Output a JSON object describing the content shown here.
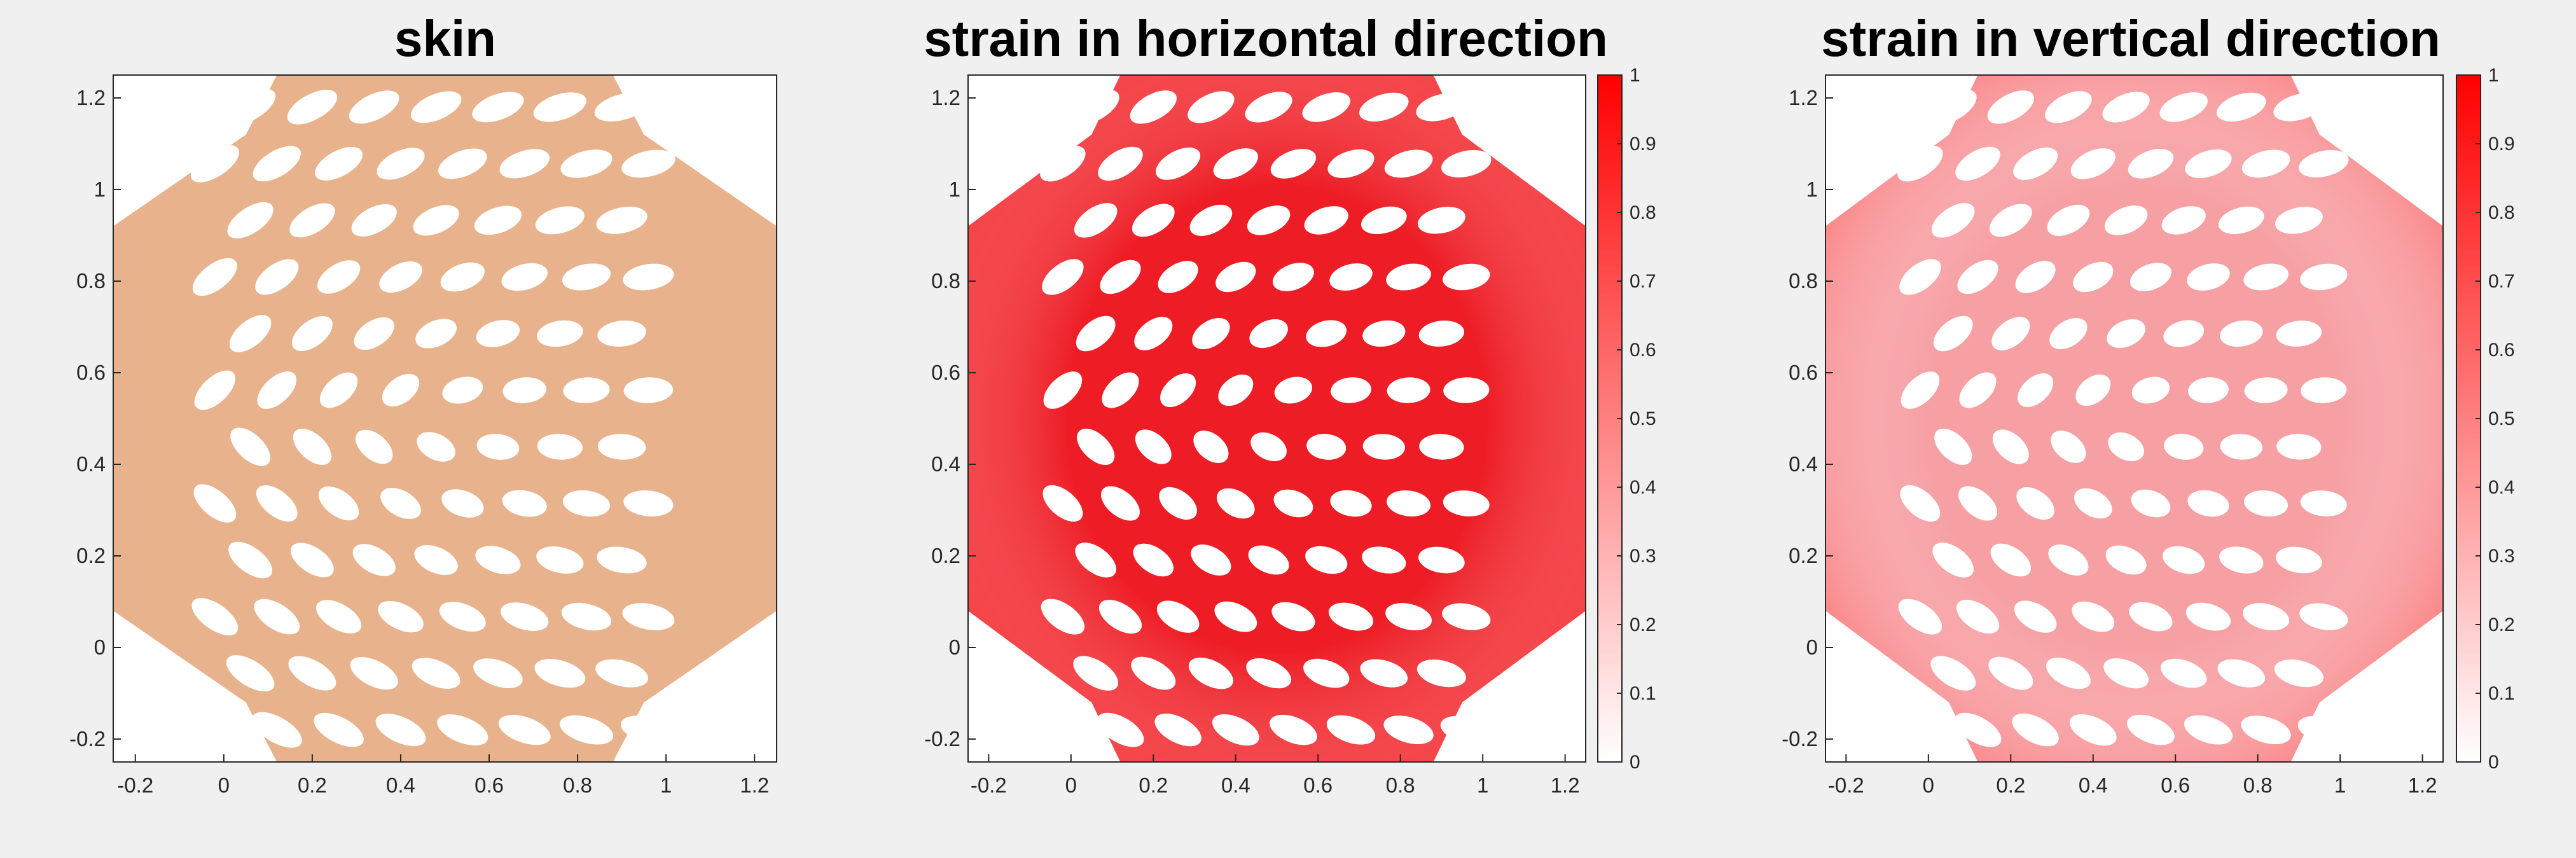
{
  "figure": {
    "background": "#f0f0f0"
  },
  "chart_data": [
    {
      "type": "heatmap",
      "title": "skin",
      "xlim": [
        -0.25,
        1.25
      ],
      "ylim": [
        -0.25,
        1.25
      ],
      "xticks": [
        -0.2,
        0,
        0.2,
        0.4,
        0.6,
        0.8,
        1,
        1.2
      ],
      "yticks": [
        -0.2,
        0,
        0.2,
        0.4,
        0.6,
        0.8,
        1,
        1.2
      ],
      "xtick_labels": [
        "-0.2",
        "0",
        "0.2",
        "0.4",
        "0.6",
        "0.8",
        "1",
        "1.2"
      ],
      "ytick_labels": [
        "-0.2",
        "0",
        "0.2",
        "0.4",
        "0.6",
        "0.8",
        "1",
        "1.2"
      ],
      "fill_color": "#e8b38c",
      "colorbar": null
    },
    {
      "type": "heatmap",
      "title": "strain in horizontal direction",
      "xlim": [
        -0.25,
        1.25
      ],
      "ylim": [
        -0.25,
        1.25
      ],
      "xticks": [
        -0.2,
        0,
        0.2,
        0.4,
        0.6,
        0.8,
        1,
        1.2
      ],
      "yticks": [
        -0.2,
        0,
        0.2,
        0.4,
        0.6,
        0.8,
        1,
        1.2
      ],
      "xtick_labels": [
        "-0.2",
        "0",
        "0.2",
        "0.4",
        "0.6",
        "0.8",
        "1",
        "1.2"
      ],
      "ytick_labels": [
        "-0.2",
        "0",
        "0.2",
        "0.4",
        "0.6",
        "0.8",
        "1",
        "1.2"
      ],
      "fill_color": "#ee1c24",
      "colorbar": {
        "range": [
          0,
          1
        ],
        "ticks": [
          0,
          0.1,
          0.2,
          0.3,
          0.4,
          0.5,
          0.6,
          0.7,
          0.8,
          0.9,
          1
        ],
        "tick_labels": [
          "0",
          "0.1",
          "0.2",
          "0.3",
          "0.4",
          "0.5",
          "0.6",
          "0.7",
          "0.8",
          "0.9",
          "1"
        ],
        "color_low": "#ffffff",
        "color_high": "#ff0000"
      }
    },
    {
      "type": "heatmap",
      "title": "strain in vertical direction",
      "xlim": [
        -0.25,
        1.25
      ],
      "ylim": [
        -0.25,
        1.25
      ],
      "xticks": [
        -0.2,
        0,
        0.2,
        0.4,
        0.6,
        0.8,
        1,
        1.2
      ],
      "yticks": [
        -0.2,
        0,
        0.2,
        0.4,
        0.6,
        0.8,
        1,
        1.2
      ],
      "xtick_labels": [
        "-0.2",
        "0",
        "0.2",
        "0.4",
        "0.6",
        "0.8",
        "1",
        "1.2"
      ],
      "ytick_labels": [
        "-0.2",
        "0",
        "0.2",
        "0.4",
        "0.6",
        "0.8",
        "1",
        "1.2"
      ],
      "fill_color": "#f6a0a4",
      "colorbar": {
        "range": [
          0,
          1
        ],
        "ticks": [
          0,
          0.1,
          0.2,
          0.3,
          0.4,
          0.5,
          0.6,
          0.7,
          0.8,
          0.9,
          1
        ],
        "tick_labels": [
          "0",
          "0.1",
          "0.2",
          "0.3",
          "0.4",
          "0.5",
          "0.6",
          "0.7",
          "0.8",
          "0.9",
          "1"
        ],
        "color_low": "#ffffff",
        "color_high": "#ff0000"
      }
    }
  ]
}
